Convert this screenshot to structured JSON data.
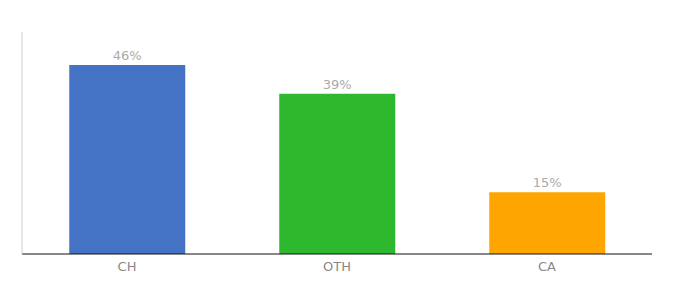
{
  "chart_data": {
    "type": "bar",
    "categories": [
      "CH",
      "OTH",
      "CA"
    ],
    "values": [
      46,
      39,
      15
    ],
    "value_labels": [
      "46%",
      "39%",
      "15%"
    ],
    "colors": [
      "#4472c4",
      "#2db82d",
      "#ffa500"
    ],
    "ylim": [
      0,
      54
    ],
    "data_labels": true,
    "tick_labels": "x",
    "grid": false
  }
}
